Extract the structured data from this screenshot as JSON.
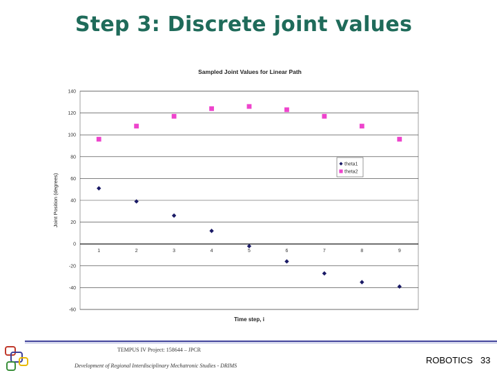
{
  "slide": {
    "title": "Step 3: Discrete joint values",
    "footer_line1": "TEMPUS IV Project: 158644 – JPCR",
    "footer_line2": "Development of Regional Interdisciplinary Mechatronic Studies - DRIMS",
    "course": "ROBOTICS",
    "page": "33"
  },
  "colors": {
    "title": "#1f6b5a",
    "theta1": "#1a1a66",
    "theta2": "#ee44cc",
    "footer_bar": "#3d3f99"
  },
  "chart_data": {
    "type": "scatter",
    "title": "Sampled Joint Values for Linear Path",
    "xlabel": "Time step, i",
    "ylabel": "Joint Position (degrees)",
    "ylim": [
      -60,
      140
    ],
    "yticks": [
      140,
      120,
      100,
      80,
      60,
      40,
      20,
      0,
      -20,
      -40,
      -60
    ],
    "x": [
      1,
      2,
      3,
      4,
      5,
      6,
      7,
      8,
      9
    ],
    "grid": true,
    "legend_position": "right",
    "series": [
      {
        "name": "theta1",
        "marker": "diamond",
        "color": "#1a1a66",
        "values": [
          51,
          39,
          26,
          12,
          -2,
          -16,
          -27,
          -35,
          -39
        ]
      },
      {
        "name": "theta2",
        "marker": "square",
        "color": "#ee44cc",
        "values": [
          96,
          108,
          117,
          124,
          126,
          123,
          117,
          108,
          96
        ]
      }
    ]
  }
}
